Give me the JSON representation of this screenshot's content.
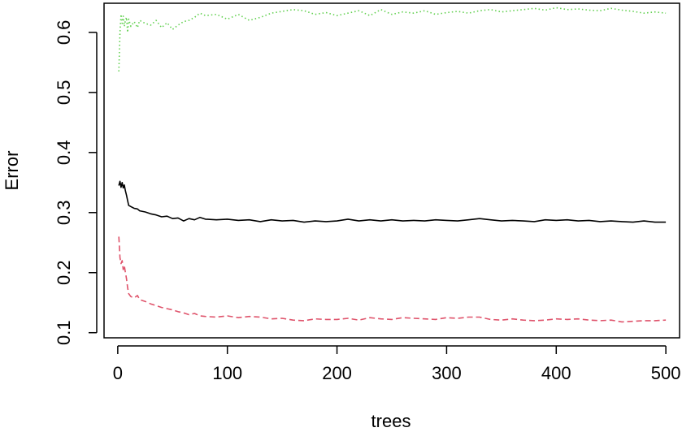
{
  "chart_data": {
    "type": "line",
    "title": "",
    "xlabel": "trees",
    "ylabel": "Error",
    "xlim": [
      -12.5,
      512.5
    ],
    "ylim": [
      0.0915,
      0.6485
    ],
    "x_ticks": [
      0,
      100,
      200,
      300,
      400,
      500
    ],
    "x_tick_labels": [
      "0",
      "100",
      "200",
      "300",
      "400",
      "500"
    ],
    "y_ticks": [
      0.1,
      0.2,
      0.3,
      0.4,
      0.5,
      0.6
    ],
    "y_tick_labels": [
      "0.1",
      "0.2",
      "0.3",
      "0.4",
      "0.5",
      "0.6"
    ],
    "grid": false,
    "legend": "none",
    "series": [
      {
        "color": "#000000",
        "dash": "solid",
        "x": [
          1,
          2,
          3,
          4,
          5,
          6,
          7,
          8,
          9,
          10,
          12,
          15,
          18,
          20,
          25,
          30,
          35,
          40,
          45,
          50,
          55,
          60,
          65,
          70,
          75,
          80,
          90,
          100,
          110,
          120,
          130,
          140,
          150,
          160,
          170,
          180,
          190,
          200,
          210,
          220,
          230,
          240,
          250,
          260,
          270,
          280,
          290,
          300,
          310,
          320,
          330,
          340,
          350,
          360,
          370,
          380,
          390,
          400,
          410,
          420,
          430,
          440,
          450,
          460,
          470,
          480,
          490,
          500
        ],
        "y": [
          0.345,
          0.352,
          0.342,
          0.35,
          0.341,
          0.346,
          0.336,
          0.329,
          0.32,
          0.312,
          0.31,
          0.307,
          0.306,
          0.303,
          0.301,
          0.298,
          0.296,
          0.293,
          0.294,
          0.29,
          0.291,
          0.286,
          0.29,
          0.288,
          0.292,
          0.289,
          0.288,
          0.289,
          0.287,
          0.288,
          0.285,
          0.288,
          0.286,
          0.287,
          0.284,
          0.286,
          0.285,
          0.286,
          0.289,
          0.286,
          0.288,
          0.286,
          0.288,
          0.286,
          0.287,
          0.286,
          0.288,
          0.287,
          0.286,
          0.288,
          0.29,
          0.288,
          0.286,
          0.287,
          0.286,
          0.285,
          0.288,
          0.287,
          0.288,
          0.286,
          0.287,
          0.285,
          0.286,
          0.285,
          0.284,
          0.286,
          0.284,
          0.284
        ]
      },
      {
        "color": "#DF536B",
        "dash": "dashed",
        "x": [
          1,
          2,
          3,
          4,
          5,
          6,
          7,
          8,
          9,
          10,
          12,
          15,
          18,
          20,
          25,
          30,
          35,
          40,
          45,
          50,
          55,
          60,
          65,
          70,
          75,
          80,
          90,
          100,
          110,
          120,
          130,
          140,
          150,
          160,
          170,
          180,
          190,
          200,
          210,
          220,
          230,
          240,
          250,
          260,
          270,
          280,
          290,
          300,
          310,
          320,
          330,
          340,
          350,
          360,
          370,
          380,
          390,
          400,
          410,
          420,
          430,
          440,
          450,
          460,
          470,
          480,
          490,
          500
        ],
        "y": [
          0.26,
          0.225,
          0.215,
          0.22,
          0.205,
          0.212,
          0.2,
          0.19,
          0.175,
          0.165,
          0.16,
          0.158,
          0.162,
          0.155,
          0.152,
          0.148,
          0.145,
          0.142,
          0.14,
          0.138,
          0.135,
          0.133,
          0.13,
          0.132,
          0.128,
          0.127,
          0.126,
          0.128,
          0.125,
          0.127,
          0.126,
          0.123,
          0.124,
          0.121,
          0.12,
          0.123,
          0.122,
          0.122,
          0.124,
          0.121,
          0.125,
          0.123,
          0.122,
          0.125,
          0.124,
          0.123,
          0.122,
          0.125,
          0.124,
          0.126,
          0.126,
          0.122,
          0.121,
          0.123,
          0.121,
          0.12,
          0.121,
          0.123,
          0.122,
          0.123,
          0.121,
          0.12,
          0.121,
          0.118,
          0.119,
          0.12,
          0.12,
          0.121
        ]
      },
      {
        "color": "#61D04F",
        "dash": "dotted",
        "x": [
          1,
          2,
          3,
          4,
          5,
          6,
          7,
          8,
          9,
          10,
          12,
          15,
          18,
          20,
          25,
          30,
          35,
          40,
          45,
          50,
          55,
          60,
          65,
          70,
          75,
          80,
          90,
          100,
          110,
          120,
          130,
          140,
          150,
          160,
          170,
          180,
          190,
          200,
          210,
          220,
          230,
          240,
          250,
          260,
          270,
          280,
          290,
          300,
          310,
          320,
          330,
          340,
          350,
          360,
          370,
          380,
          390,
          400,
          410,
          420,
          430,
          440,
          450,
          460,
          470,
          480,
          490,
          500
        ],
        "y": [
          0.535,
          0.6,
          0.63,
          0.615,
          0.627,
          0.61,
          0.62,
          0.625,
          0.6,
          0.622,
          0.61,
          0.618,
          0.608,
          0.62,
          0.615,
          0.612,
          0.62,
          0.608,
          0.616,
          0.605,
          0.612,
          0.618,
          0.62,
          0.625,
          0.632,
          0.628,
          0.63,
          0.622,
          0.63,
          0.62,
          0.625,
          0.632,
          0.635,
          0.638,
          0.636,
          0.63,
          0.633,
          0.628,
          0.632,
          0.636,
          0.628,
          0.638,
          0.63,
          0.634,
          0.632,
          0.636,
          0.63,
          0.633,
          0.635,
          0.632,
          0.636,
          0.638,
          0.634,
          0.636,
          0.638,
          0.64,
          0.637,
          0.641,
          0.638,
          0.639,
          0.637,
          0.636,
          0.64,
          0.637,
          0.635,
          0.632,
          0.634,
          0.632
        ]
      }
    ]
  }
}
